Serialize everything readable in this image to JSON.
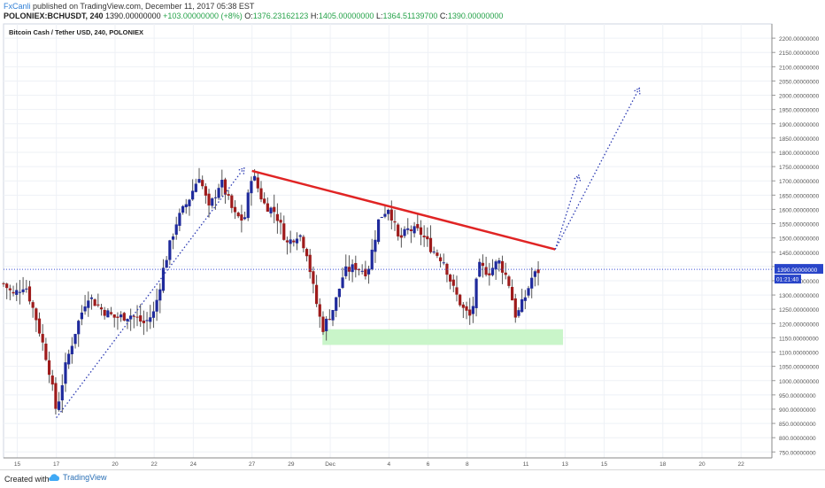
{
  "header": {
    "user": "FxCanli",
    "published": "published on TradingView.com, December 11, 2017 05:38 EST",
    "symbol": "POLONIEX:BCHUSDT, 240",
    "last": "1390.00000000",
    "change": "+103.00000000 (+8%)",
    "o_label": "O:",
    "o": "1376.23162123",
    "h_label": "H:",
    "h": "1405.00000000",
    "l_label": "L:",
    "l": "1364.51139700",
    "c_label": "C:",
    "c": "1390.00000000"
  },
  "footer": {
    "created": "Created with",
    "brand": "TradingView"
  },
  "colors": {
    "up": "#1f2a9c",
    "down": "#9e1b1b",
    "trend": "#e02424",
    "projection": "#2c3bb3",
    "support_zone": "#c9f5c9",
    "price_line": "#3b4fd6",
    "price_box": "#2945c9",
    "timer_box": "#2945c9",
    "grid": "#eef1f6"
  },
  "chart_data": {
    "type": "candlestick",
    "title": "Bitcoin Cash / Tether USD, 240, POLONIEX",
    "ylim": [
      700,
      2250
    ],
    "y_ticks": [
      750,
      800,
      850,
      900,
      950,
      1000,
      1050,
      1100,
      1150,
      1200,
      1250,
      1300,
      1350,
      1400,
      1450,
      1500,
      1550,
      1600,
      1650,
      1700,
      1750,
      1800,
      1850,
      1900,
      1950,
      2000,
      2050,
      2100,
      2150,
      2200
    ],
    "y_tick_labels": [
      "750.00000000",
      "800.00000000",
      "850.00000000",
      "900.00000000",
      "950.00000000",
      "1000.00000000",
      "1050.00000000",
      "1100.00000000",
      "1150.00000000",
      "1200.00000000",
      "1250.00000000",
      "1300.00000000",
      "1350.00000000",
      "1400.00000000",
      "1450.00000000",
      "1500.00000000",
      "1550.00000000",
      "1600.00000000",
      "1650.00000000",
      "1700.00000000",
      "1750.00000000",
      "1800.00000000",
      "1850.00000000",
      "1900.00000000",
      "1950.00000000",
      "2000.00000000",
      "2050.00000000",
      "2100.00000000",
      "2150.00000000",
      "2200.00000000"
    ],
    "x_ticks": [
      {
        "day": 15,
        "label": "15"
      },
      {
        "day": 17,
        "label": "17"
      },
      {
        "day": 20,
        "label": "20"
      },
      {
        "day": 22,
        "label": "22"
      },
      {
        "day": 24,
        "label": "24"
      },
      {
        "day": 27,
        "label": "27"
      },
      {
        "day": 29,
        "label": "29"
      },
      {
        "day": 31,
        "label": "Dec"
      },
      {
        "day": 34,
        "label": "4"
      },
      {
        "day": 36,
        "label": "6"
      },
      {
        "day": 38,
        "label": "8"
      },
      {
        "day": 41,
        "label": "11"
      },
      {
        "day": 43,
        "label": "13"
      },
      {
        "day": 45,
        "label": "15"
      },
      {
        "day": 48,
        "label": "18"
      },
      {
        "day": 50,
        "label": "20"
      },
      {
        "day": 52,
        "label": "22"
      }
    ],
    "x_range_days": [
      14.3,
      53.4
    ],
    "current_price": 1390,
    "current_price_label": "1390.00000000",
    "countdown_label": "01:21:40",
    "support_zone": {
      "day_start": 30.6,
      "day_end": 42.9,
      "price_low": 1125,
      "price_high": 1180
    },
    "trendline": {
      "start": {
        "day": 27.0,
        "price": 1735
      },
      "end": {
        "day": 42.5,
        "price": 1460
      }
    },
    "projection_lines": [
      {
        "from": {
          "day": 17.0,
          "price": 870
        },
        "to": {
          "day": 26.6,
          "price": 1745
        }
      },
      {
        "from": {
          "day": 42.5,
          "price": 1460
        },
        "to": {
          "day": 43.7,
          "price": 1720
        }
      },
      {
        "from": {
          "day": 42.5,
          "price": 1460
        },
        "to": {
          "day": 46.8,
          "price": 2025
        }
      }
    ],
    "anchors": [
      {
        "day": 14.3,
        "price": 1340
      },
      {
        "day": 14.8,
        "price": 1300
      },
      {
        "day": 15.4,
        "price": 1340
      },
      {
        "day": 16.0,
        "price": 1210
      },
      {
        "day": 16.6,
        "price": 1050
      },
      {
        "day": 17.0,
        "price": 890
      },
      {
        "day": 17.5,
        "price": 1060
      },
      {
        "day": 18.0,
        "price": 1180
      },
      {
        "day": 18.6,
        "price": 1300
      },
      {
        "day": 19.3,
        "price": 1250
      },
      {
        "day": 20.0,
        "price": 1220
      },
      {
        "day": 20.8,
        "price": 1230
      },
      {
        "day": 21.5,
        "price": 1200
      },
      {
        "day": 22.0,
        "price": 1240
      },
      {
        "day": 22.5,
        "price": 1400
      },
      {
        "day": 23.1,
        "price": 1550
      },
      {
        "day": 23.8,
        "price": 1640
      },
      {
        "day": 24.3,
        "price": 1720
      },
      {
        "day": 24.8,
        "price": 1600
      },
      {
        "day": 25.4,
        "price": 1700
      },
      {
        "day": 26.1,
        "price": 1580
      },
      {
        "day": 26.6,
        "price": 1560
      },
      {
        "day": 27.0,
        "price": 1730
      },
      {
        "day": 27.6,
        "price": 1620
      },
      {
        "day": 28.2,
        "price": 1590
      },
      {
        "day": 28.8,
        "price": 1480
      },
      {
        "day": 29.4,
        "price": 1520
      },
      {
        "day": 29.8,
        "price": 1450
      },
      {
        "day": 30.2,
        "price": 1300
      },
      {
        "day": 30.6,
        "price": 1180
      },
      {
        "day": 31.2,
        "price": 1260
      },
      {
        "day": 31.7,
        "price": 1380
      },
      {
        "day": 32.3,
        "price": 1400
      },
      {
        "day": 32.9,
        "price": 1380
      },
      {
        "day": 33.5,
        "price": 1570
      },
      {
        "day": 34.0,
        "price": 1610
      },
      {
        "day": 34.5,
        "price": 1490
      },
      {
        "day": 35.0,
        "price": 1530
      },
      {
        "day": 35.6,
        "price": 1520
      },
      {
        "day": 36.2,
        "price": 1460
      },
      {
        "day": 36.8,
        "price": 1420
      },
      {
        "day": 37.3,
        "price": 1320
      },
      {
        "day": 37.8,
        "price": 1250
      },
      {
        "day": 38.2,
        "price": 1220
      },
      {
        "day": 38.6,
        "price": 1400
      },
      {
        "day": 39.1,
        "price": 1380
      },
      {
        "day": 39.6,
        "price": 1420
      },
      {
        "day": 40.1,
        "price": 1350
      },
      {
        "day": 40.5,
        "price": 1220
      },
      {
        "day": 41.0,
        "price": 1300
      },
      {
        "day": 41.3,
        "price": 1360
      },
      {
        "day": 41.7,
        "price": 1390
      }
    ]
  }
}
